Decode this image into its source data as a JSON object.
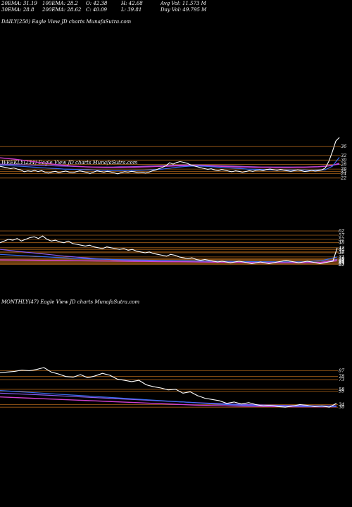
{
  "header": {
    "row1": [
      {
        "key": "ema20",
        "text": "20EMA: 31.19"
      },
      {
        "key": "ema100",
        "text": "100EMA: 28.2"
      },
      {
        "key": "open",
        "text": "O: 42.38"
      },
      {
        "key": "high",
        "text": "H: 42.68"
      },
      {
        "key": "avgvol",
        "text": "Avg Vol: 11.573 M"
      }
    ],
    "row2": [
      {
        "key": "ema30",
        "text": "30EMA: 28.8"
      },
      {
        "key": "ema200",
        "text": "200EMA: 28.62"
      },
      {
        "key": "close",
        "text": "C: 40.09"
      },
      {
        "key": "low",
        "text": "L: 39.81"
      },
      {
        "key": "dayvol",
        "text": "Day Vol: 49.795 M"
      }
    ]
  },
  "panels": {
    "daily": {
      "label": "DAILY(250) Eagle  View  JD charts MunafaSutra.com"
    },
    "weekly": {
      "label": "WEEKLY(234) Eagle  View  JD charts MunafaSutra.com"
    },
    "monthly": {
      "label": "MONTHLY(47) Eagle  View  JD charts MunafaSutra.com"
    }
  },
  "colors": {
    "background": "#000000",
    "price": "#ffffff",
    "level": "#c8741f",
    "ema_blue": "#3a6cf0",
    "ema_magenta": "#d040d0",
    "ema_violet": "#8a5cf0"
  },
  "chart_data": [
    {
      "type": "line",
      "name": "daily",
      "levels": [
        36,
        32,
        30,
        28,
        26,
        25,
        24,
        22
      ],
      "tick_labels": [
        "36",
        "32",
        "30",
        "28",
        "26",
        "25",
        "24",
        "22"
      ],
      "price": [
        27.2,
        26.9,
        26.6,
        26.2,
        26.5,
        26.0,
        25.6,
        24.8,
        25.2,
        25.0,
        25.4,
        24.9,
        25.3,
        24.6,
        24.2,
        24.7,
        25.0,
        24.4,
        24.8,
        25.1,
        24.6,
        24.3,
        24.8,
        25.2,
        24.9,
        24.5,
        24.0,
        24.6,
        25.2,
        24.9,
        24.6,
        25.0,
        24.7,
        24.3,
        23.9,
        24.4,
        24.8,
        24.6,
        25.0,
        24.7,
        24.3,
        24.6,
        24.2,
        24.6,
        25.2,
        25.6,
        26.2,
        26.8,
        27.6,
        28.8,
        28.2,
        28.9,
        29.3,
        29.0,
        28.6,
        27.9,
        27.4,
        27.0,
        26.6,
        26.2,
        25.9,
        26.1,
        25.6,
        25.3,
        25.8,
        25.5,
        25.1,
        24.8,
        25.2,
        25.0,
        24.6,
        24.9,
        25.3,
        25.0,
        25.4,
        25.6,
        25.3,
        25.8,
        26.0,
        25.7,
        25.4,
        25.8,
        25.5,
        25.2,
        25.0,
        25.3,
        25.6,
        25.3,
        24.9,
        25.1,
        25.4,
        25.1,
        25.3,
        25.6,
        26.6,
        29.5,
        33.8,
        38.5,
        40.09
      ],
      "ema_blue": [
        27.6,
        27.5,
        27.4,
        27.2,
        27.0,
        26.8,
        26.6,
        26.4,
        26.2,
        26.0,
        25.9,
        25.8,
        25.7,
        25.6,
        25.5,
        25.4,
        25.3,
        25.3,
        25.3,
        25.4,
        25.5,
        25.6,
        25.8,
        26.0,
        26.4,
        26.8,
        27.1,
        27.3,
        27.3,
        27.2,
        27.0,
        26.8,
        26.6,
        26.4,
        26.2,
        26.0,
        25.9,
        25.8,
        25.7,
        25.6,
        25.6,
        25.6,
        25.6,
        25.6,
        25.5,
        25.6,
        25.7,
        27.2,
        31.19
      ],
      "ema_magenta": [
        31.0,
        30.7,
        30.4,
        30.0,
        29.6,
        29.2,
        28.8,
        28.4,
        28.0,
        27.7,
        27.4,
        27.2,
        27.0,
        26.9,
        26.8,
        26.7,
        26.7,
        26.7,
        26.8,
        26.8,
        26.9,
        27.0,
        27.1,
        27.2,
        27.3,
        27.4,
        27.5,
        27.5,
        27.5,
        27.4,
        27.3,
        27.2,
        27.1,
        27.0,
        26.9,
        26.9,
        26.8,
        26.8,
        26.8,
        26.7,
        26.7,
        26.7,
        26.8,
        26.8,
        26.9,
        27.0,
        27.2,
        27.6,
        28.62
      ],
      "ema_violet": [
        28.2,
        28.1,
        28.0,
        27.9,
        27.8,
        27.7,
        27.6,
        27.5,
        27.4,
        27.3,
        27.2,
        27.1,
        27.0,
        26.9,
        26.9,
        26.9,
        26.9,
        27.0,
        27.0,
        27.1,
        27.2,
        27.3,
        27.4,
        27.5,
        27.6,
        27.7,
        27.8,
        27.8,
        27.8,
        27.7,
        27.6,
        27.5,
        27.4,
        27.3,
        27.2,
        27.1,
        27.0,
        26.9,
        26.9,
        26.9,
        26.9,
        26.9,
        26.9,
        26.9,
        27.0,
        27.1,
        27.3,
        27.7,
        28.2
      ]
    },
    {
      "type": "line",
      "name": "weekly",
      "levels": [
        62,
        57,
        52,
        48,
        42,
        40,
        37,
        36,
        31,
        29,
        28,
        27,
        26,
        25,
        24,
        23,
        22
      ],
      "tick_labels": [
        "62",
        "57",
        "52",
        "48",
        "42",
        "40",
        "37",
        "36",
        "31",
        "29",
        "28",
        "27",
        "26",
        "25",
        "24",
        "23",
        "22"
      ],
      "price": [
        48,
        50,
        52,
        51,
        53,
        50,
        52,
        54,
        55,
        53,
        56,
        52,
        50,
        51,
        49,
        48,
        50,
        47,
        46,
        45,
        44,
        45,
        43,
        42,
        41,
        43,
        42,
        41,
        40,
        41,
        39,
        40,
        38,
        37,
        36,
        37,
        35,
        34,
        33,
        32,
        34,
        33,
        31,
        30,
        29,
        30,
        28,
        27,
        28,
        27,
        26,
        25,
        26,
        25,
        24,
        25,
        26,
        25,
        24,
        23,
        24,
        25,
        24,
        23,
        24,
        25,
        26,
        27,
        26,
        25,
        24,
        25,
        26,
        25,
        24,
        23,
        24,
        25,
        26,
        42
      ],
      "ema_blue": [
        34,
        33,
        32,
        31,
        30,
        29,
        28.5,
        28,
        27.6,
        27.2,
        26.9,
        26.6,
        26.3,
        26.0,
        25.8,
        25.6,
        25.4,
        25.3,
        25.2,
        25.3,
        26.5,
        31
      ],
      "ema_magenta": [
        27.5,
        27.3,
        27.1,
        26.9,
        26.7,
        26.5,
        26.3,
        26.1,
        25.9,
        25.7,
        25.5,
        25.3,
        25.1,
        24.9,
        24.7,
        24.5,
        24.3,
        24.1,
        24.0,
        24.0,
        24.5,
        26.5
      ],
      "ema_violet": [
        40,
        38,
        36,
        34,
        32,
        30.5,
        29,
        27.8,
        27.0,
        26.4,
        26.0,
        25.6,
        25.3,
        25.0,
        24.8,
        24.6,
        24.4,
        24.3,
        24.2,
        24.3,
        24.8,
        28
      ]
    },
    {
      "type": "line",
      "name": "monthly",
      "levels": [
        87,
        78,
        73,
        58,
        55,
        34,
        30
      ],
      "tick_labels": [
        "87",
        "78",
        "73",
        "58",
        "55",
        "34",
        "30"
      ],
      "price": [
        84,
        85,
        86,
        88,
        87,
        89,
        92,
        85,
        82,
        78,
        77,
        81,
        76,
        79,
        83,
        80,
        74,
        72,
        70,
        72,
        65,
        62,
        60,
        57,
        58,
        52,
        54,
        48,
        44,
        42,
        40,
        36,
        38,
        35,
        37,
        34,
        32,
        33,
        31,
        30,
        32,
        34,
        33,
        31,
        32,
        30,
        36
      ],
      "ema_blue": [
        56,
        54.5,
        53,
        51.5,
        50,
        48.5,
        47,
        45.5,
        44,
        42.5,
        41,
        39.5,
        38,
        36.5,
        35,
        34,
        33,
        32.5,
        32,
        31.5,
        31.2,
        31,
        31
      ],
      "ema_magenta": [
        46,
        45,
        44,
        43,
        42,
        41,
        40,
        39,
        38,
        37,
        36,
        35,
        34,
        33,
        32.5,
        32,
        31.5,
        31.2,
        31,
        30.8,
        30.6,
        30.5,
        30.6
      ],
      "ema_violet": [
        52,
        51,
        50,
        48.8,
        47.6,
        46.4,
        45.2,
        44,
        42.8,
        41.6,
        40.4,
        39.2,
        38,
        36.8,
        35.8,
        35,
        34.2,
        33.5,
        33,
        32.6,
        32.3,
        32,
        32.2
      ]
    }
  ]
}
